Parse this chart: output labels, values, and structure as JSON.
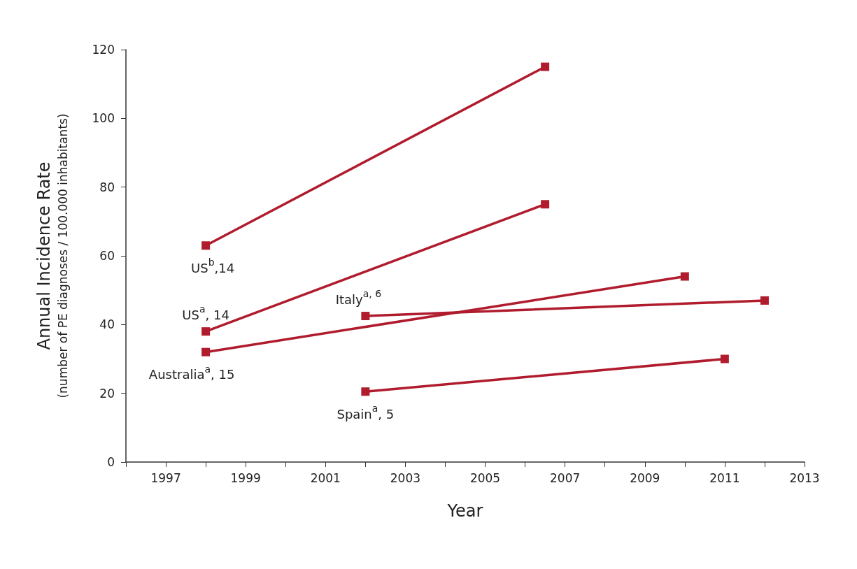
{
  "chart_data": {
    "type": "line",
    "xlabel": "Year",
    "ylabel": "Annual Incidence Rate\n(number of PE diagnoses / 100.000 inhabitants)",
    "xlim": [
      1996,
      2013
    ],
    "xticks": [
      {
        "value": 1996,
        "label": null
      },
      1997,
      {
        "value": 1998,
        "label": null
      },
      1999,
      {
        "value": 2000,
        "label": null
      },
      2001,
      {
        "value": 2002,
        "label": null
      },
      2003,
      {
        "value": 2004,
        "label": null
      },
      2005,
      {
        "value": 2006,
        "label": null
      },
      2007,
      {
        "value": 2008,
        "label": null
      },
      2009,
      {
        "value": 2010,
        "label": null
      },
      2011,
      {
        "value": 2012,
        "label": null
      },
      2013
    ],
    "ylim": [
      0,
      120
    ],
    "yticks": [
      0,
      20,
      40,
      60,
      80,
      100,
      120
    ],
    "grid": false,
    "legend": false,
    "marker": "square",
    "line_style": "solid",
    "series": [
      {
        "name": "US$^{b}$,14",
        "color": "#b01c2e",
        "x": [
          1998,
          2006.5
        ],
        "values": [
          63,
          115
        ]
      },
      {
        "name": "US$^{a}$, 14",
        "color": "#b01c2e",
        "x": [
          1998,
          2006.5
        ],
        "values": [
          38,
          75
        ]
      },
      {
        "name": "Australia$^{a}$, 15",
        "color": "#b01c2e",
        "x": [
          1998,
          2010
        ],
        "values": [
          32,
          54
        ]
      },
      {
        "name": "Italy$^{a, 6}$",
        "color": "#b01c2e",
        "x": [
          2002,
          2012
        ],
        "values": [
          42.5,
          47
        ]
      },
      {
        "name": "Spain$^{a}$, 5",
        "color": "#b01c2e",
        "x": [
          2002,
          2011
        ],
        "values": [
          20.5,
          30
        ]
      }
    ]
  }
}
